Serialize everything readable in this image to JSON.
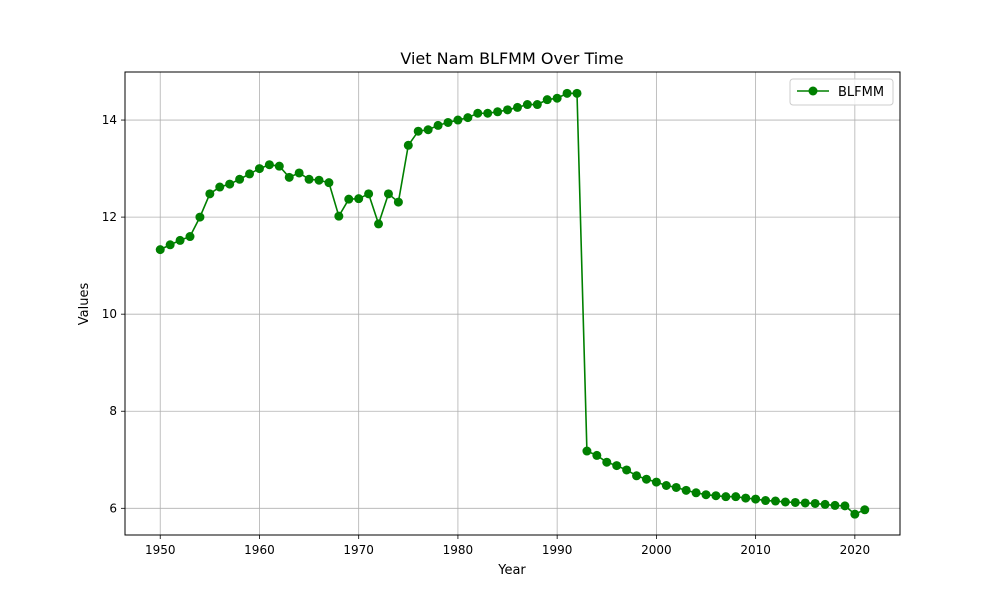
{
  "chart_data": {
    "type": "line",
    "title": "Viet Nam BLFMM Over Time",
    "xlabel": "Year",
    "ylabel": "Values",
    "xlim": [
      1946.45,
      2024.55
    ],
    "ylim": [
      5.45,
      14.99
    ],
    "xticks": [
      1950,
      1960,
      1970,
      1980,
      1990,
      2000,
      2010,
      2020
    ],
    "yticks": [
      6,
      8,
      10,
      12,
      14
    ],
    "grid": true,
    "legend_position": "top-right",
    "colors": {
      "series": "#008000"
    },
    "series": [
      {
        "name": "BLFMM",
        "marker": "circle",
        "x": [
          1950,
          1951,
          1952,
          1953,
          1954,
          1955,
          1956,
          1957,
          1958,
          1959,
          1960,
          1961,
          1962,
          1963,
          1964,
          1965,
          1966,
          1967,
          1968,
          1969,
          1970,
          1971,
          1972,
          1973,
          1974,
          1975,
          1976,
          1977,
          1978,
          1979,
          1980,
          1981,
          1982,
          1983,
          1984,
          1985,
          1986,
          1987,
          1988,
          1989,
          1990,
          1991,
          1992,
          1993,
          1994,
          1995,
          1996,
          1997,
          1998,
          1999,
          2000,
          2001,
          2002,
          2003,
          2004,
          2005,
          2006,
          2007,
          2008,
          2009,
          2010,
          2011,
          2012,
          2013,
          2014,
          2015,
          2016,
          2017,
          2018,
          2019,
          2020,
          2021
        ],
        "values": [
          11.33,
          11.43,
          11.52,
          11.6,
          12.0,
          12.48,
          12.62,
          12.68,
          12.78,
          12.89,
          13.0,
          13.08,
          13.05,
          12.82,
          12.91,
          12.78,
          12.76,
          12.71,
          12.02,
          12.37,
          12.38,
          12.48,
          11.86,
          12.48,
          12.31,
          13.48,
          13.77,
          13.8,
          13.89,
          13.95,
          14.0,
          14.05,
          14.14,
          14.14,
          14.17,
          14.21,
          14.26,
          14.32,
          14.32,
          14.42,
          14.45,
          14.55,
          14.55,
          7.18,
          7.09,
          6.95,
          6.88,
          6.79,
          6.67,
          6.6,
          6.54,
          6.47,
          6.43,
          6.37,
          6.32,
          6.28,
          6.26,
          6.24,
          6.24,
          6.21,
          6.19,
          6.16,
          6.15,
          6.13,
          6.12,
          6.11,
          6.1,
          6.08,
          6.06,
          6.05,
          5.88,
          5.97
        ]
      }
    ]
  }
}
